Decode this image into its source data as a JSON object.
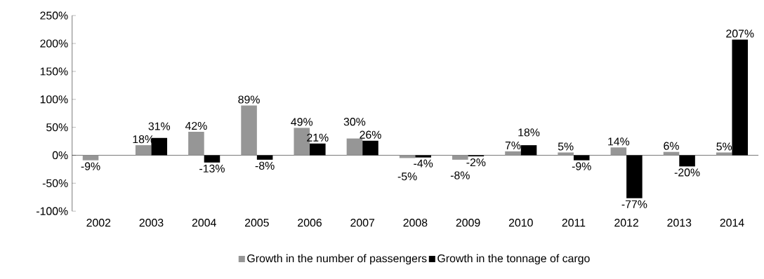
{
  "chart_data": {
    "type": "bar",
    "categories": [
      "2002",
      "2003",
      "2004",
      "2005",
      "2006",
      "2007",
      "2008",
      "2009",
      "2010",
      "2011",
      "2012",
      "2013",
      "2014"
    ],
    "series": [
      {
        "name": "Growth in the number of passengers",
        "color": "#969696",
        "values": [
          -9,
          18,
          42,
          89,
          49,
          30,
          -5,
          -8,
          7,
          5,
          14,
          6,
          5
        ],
        "value_labels": [
          "-9%",
          "18%",
          "42%",
          "89%",
          "49%",
          "30%",
          "-5%",
          "-8%",
          "7%",
          "5%",
          "14%",
          "6%",
          "5%"
        ]
      },
      {
        "name": "Growth in the tonnage of cargo",
        "color": "#000000",
        "values": [
          null,
          31,
          -13,
          -8,
          21,
          26,
          -4,
          -2,
          18,
          -9,
          -77,
          -20,
          207
        ],
        "value_labels": [
          null,
          "31%",
          "-13%",
          "-8%",
          "21%",
          "26%",
          "-4%",
          "-2%",
          "18%",
          "-9%",
          "-77%",
          "-20%",
          "207%"
        ]
      }
    ],
    "ylim": [
      -100,
      250
    ],
    "yticks": [
      {
        "value": -100,
        "label": "-100%"
      },
      {
        "value": -50,
        "label": "-50%"
      },
      {
        "value": 0,
        "label": "0%"
      },
      {
        "value": 50,
        "label": "50%"
      },
      {
        "value": 100,
        "label": "100%"
      },
      {
        "value": 150,
        "label": "150%"
      },
      {
        "value": 200,
        "label": "200%"
      },
      {
        "value": 250,
        "label": "250%"
      }
    ],
    "legend": "bottom"
  }
}
